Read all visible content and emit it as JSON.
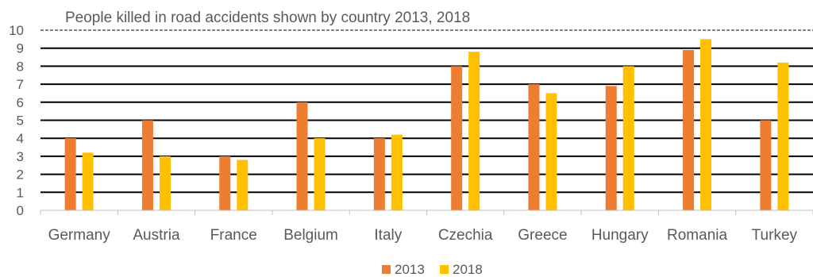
{
  "chart_data": {
    "type": "bar",
    "title": "People killed in road accidents shown by country 2013, 2018",
    "categories": [
      "Germany",
      "Austria",
      "France",
      "Belgium",
      "Italy",
      "Czechia",
      "Greece",
      "Hungary",
      "Romania",
      "Turkey"
    ],
    "series": [
      {
        "name": "2013",
        "color": "#ED7D31",
        "values": [
          4.0,
          5.0,
          3.0,
          6.0,
          4.0,
          8.0,
          7.0,
          6.9,
          8.9,
          5.0
        ]
      },
      {
        "name": "2018",
        "color": "#FFC000",
        "values": [
          3.2,
          3.0,
          2.8,
          4.0,
          4.2,
          8.8,
          6.5,
          8.0,
          9.5,
          8.2
        ]
      }
    ],
    "ylim": [
      0,
      10
    ],
    "yticks": [
      0,
      1,
      2,
      3,
      4,
      5,
      6,
      7,
      8,
      9,
      10
    ],
    "xlabel": "",
    "ylabel": "",
    "grid": true,
    "legend": "bottom-center"
  }
}
